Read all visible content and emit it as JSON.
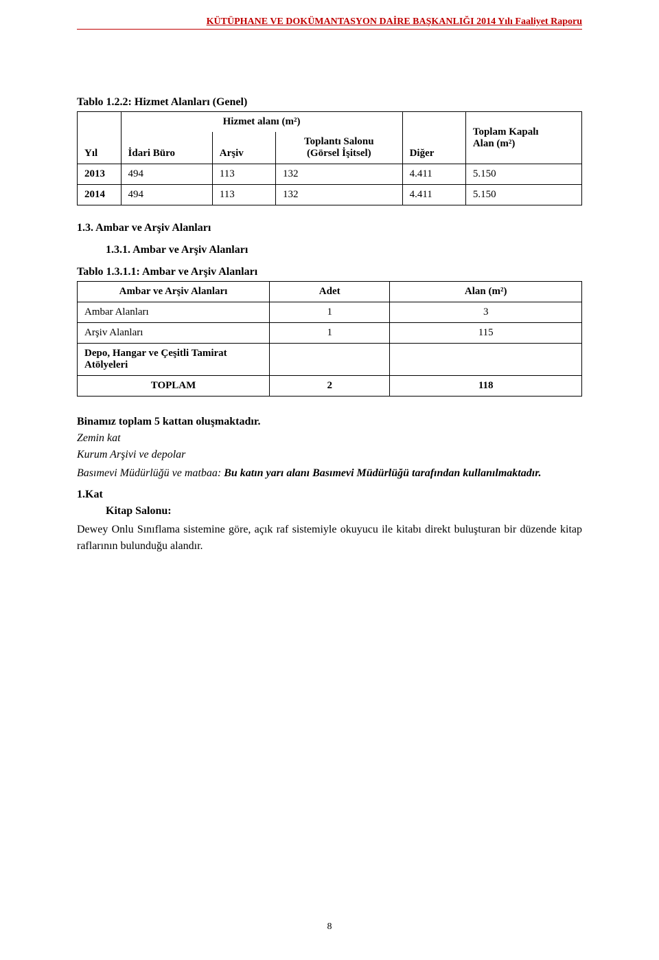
{
  "header": {
    "text": "KÜTÜPHANE VE DOKÜMANTASYON DAİRE BAŞKANLIĞI  2014 Yılı Faaliyet Raporu",
    "line_color": "#c00000"
  },
  "table1": {
    "title": "Tablo 1.2.2: Hizmet Alanları (Genel)",
    "header_hizmet": "Hizmet alanı (m²)",
    "col_yil": "Yıl",
    "col_idari": "İdari Büro",
    "col_arsiv": "Arşiv",
    "col_toplanti_l1": "Toplantı Salonu",
    "col_toplanti_l2": "(Görsel İşitsel)",
    "col_diger": "Diğer",
    "col_toplam_l1": "Toplam Kapalı",
    "col_toplam_l2": "Alan (m²)",
    "rows": [
      {
        "yil": "2013",
        "idari": "494",
        "arsiv": "113",
        "toplanti": "132",
        "diger": "4.411",
        "toplam": "5.150"
      },
      {
        "yil": "2014",
        "idari": "494",
        "arsiv": "113",
        "toplanti": "132",
        "diger": "4.411",
        "toplam": "5.150"
      }
    ]
  },
  "section_1_3": "1.3. Ambar ve Arşiv Alanları",
  "section_1_3_1": "1.3.1. Ambar ve Arşiv Alanları",
  "table2": {
    "title": "Tablo 1.3.1.1: Ambar ve Arşiv Alanları",
    "col_label": "Ambar ve Arşiv Alanları",
    "col_adet": "Adet",
    "col_alan": "Alan (m²)",
    "rows": [
      {
        "label": "Ambar Alanları",
        "adet": "1",
        "alan": "3"
      },
      {
        "label": "Arşiv Alanları",
        "adet": "1",
        "alan": "115"
      }
    ],
    "depo_l1": "Depo, Hangar ve Çeşitli Tamirat",
    "depo_l2": "Atölyeleri",
    "toplam_label": "TOPLAM",
    "toplam_adet": "2",
    "toplam_alan": "118"
  },
  "bina_text": "Binamız toplam 5 kattan oluşmaktadır.",
  "zemin_text": "Zemin kat",
  "kurum_text": "Kurum Arşivi ve depolar",
  "basimevi_prefix": "Basımevi Müdürlüğü ve matbaa: ",
  "basimevi_bold": "Bu katın yarı alanı Basımevi Müdürlüğü tarafından kullanılmaktadır.",
  "kat1": "1.Kat",
  "kitap_salonu": "Kitap Salonu:",
  "dewey_text": "Dewey Onlu Sınıflama sistemine göre, açık raf sistemiyle okuyucu ile kitabı direkt buluşturan bir düzende kitap raflarının bulunduğu alandır.",
  "page_number": "8",
  "colors": {
    "header_red": "#c00000",
    "text": "#000000",
    "border": "#000000",
    "background": "#ffffff"
  }
}
